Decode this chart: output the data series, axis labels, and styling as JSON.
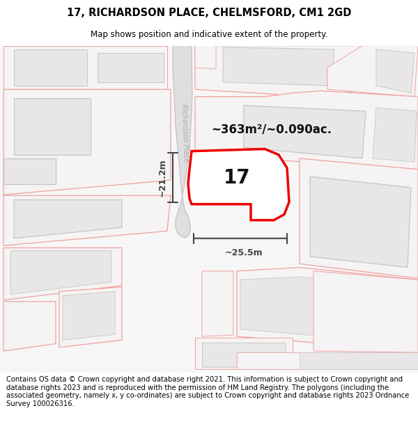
{
  "title": "17, RICHARDSON PLACE, CHELMSFORD, CM1 2GD",
  "subtitle": "Map shows position and indicative extent of the property.",
  "footer": "Contains OS data © Crown copyright and database right 2021. This information is subject to Crown copyright and database rights 2023 and is reproduced with the permission of HM Land Registry. The polygons (including the associated geometry, namely x, y co-ordinates) are subject to Crown copyright and database rights 2023 Ordnance Survey 100026316.",
  "area_label": "~363m²/~0.090ac.",
  "width_label": "~25.5m",
  "height_label": "~21.2m",
  "number_label": "17",
  "road_label": "Richardson Place",
  "map_bg": "#f7f6f6",
  "plot_fill": "#ffffff",
  "plot_outline": "#ee0000",
  "parcel_edge": "#f0a0a0",
  "parcel_fill": "#f5f3f3",
  "building_fill": "#e8e6e6",
  "building_edge": "#c8c4c4",
  "road_fill": "#e0dede",
  "road_edge": "#c0bcbc",
  "dim_color": "#444444",
  "title_fontsize": 10.5,
  "subtitle_fontsize": 8.5,
  "footer_fontsize": 7.2,
  "road_label_color": "#aaaaaa"
}
